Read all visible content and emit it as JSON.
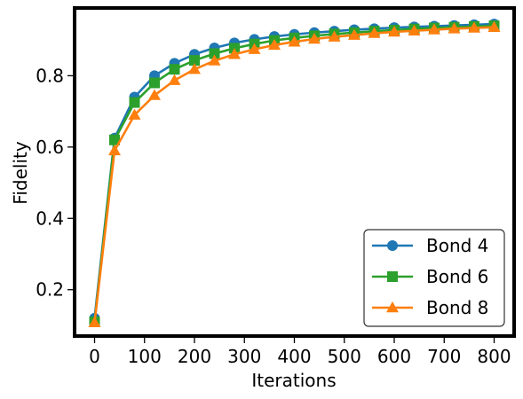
{
  "chart_data": {
    "type": "line",
    "xlabel": "Iterations",
    "ylabel": "Fidelity",
    "xlim": [
      -40,
      840
    ],
    "ylim": [
      0.07,
      0.99
    ],
    "xticks": [
      0,
      100,
      200,
      300,
      400,
      500,
      600,
      700,
      800
    ],
    "xtick_labels": [
      "0",
      "100",
      "200",
      "300",
      "400",
      "500",
      "600",
      "700",
      "800"
    ],
    "yticks": [
      0.2,
      0.4,
      0.6,
      0.8
    ],
    "ytick_labels": [
      "0.2",
      "0.4",
      "0.6",
      "0.8"
    ],
    "grid": false,
    "legend_position": "lower-right",
    "x": [
      0,
      40,
      80,
      120,
      160,
      200,
      240,
      280,
      320,
      360,
      400,
      440,
      480,
      520,
      560,
      600,
      640,
      680,
      720,
      760,
      800
    ],
    "series": [
      {
        "name": "Bond 4",
        "color": "#1f77b4",
        "marker": "circle",
        "values": [
          0.12,
          0.625,
          0.74,
          0.8,
          0.835,
          0.86,
          0.878,
          0.892,
          0.902,
          0.91,
          0.916,
          0.921,
          0.925,
          0.929,
          0.932,
          0.935,
          0.937,
          0.939,
          0.941,
          0.943,
          0.945
        ]
      },
      {
        "name": "Bond 6",
        "color": "#2ca02c",
        "marker": "square",
        "values": [
          0.11,
          0.62,
          0.725,
          0.78,
          0.818,
          0.843,
          0.862,
          0.877,
          0.889,
          0.899,
          0.906,
          0.912,
          0.917,
          0.921,
          0.925,
          0.928,
          0.931,
          0.934,
          0.936,
          0.938,
          0.94
        ]
      },
      {
        "name": "Bond 8",
        "color": "#ff7f0e",
        "marker": "triangle",
        "values": [
          0.108,
          0.59,
          0.69,
          0.745,
          0.787,
          0.818,
          0.842,
          0.86,
          0.874,
          0.886,
          0.895,
          0.903,
          0.909,
          0.914,
          0.919,
          0.923,
          0.926,
          0.929,
          0.932,
          0.934,
          0.936
        ]
      }
    ]
  }
}
